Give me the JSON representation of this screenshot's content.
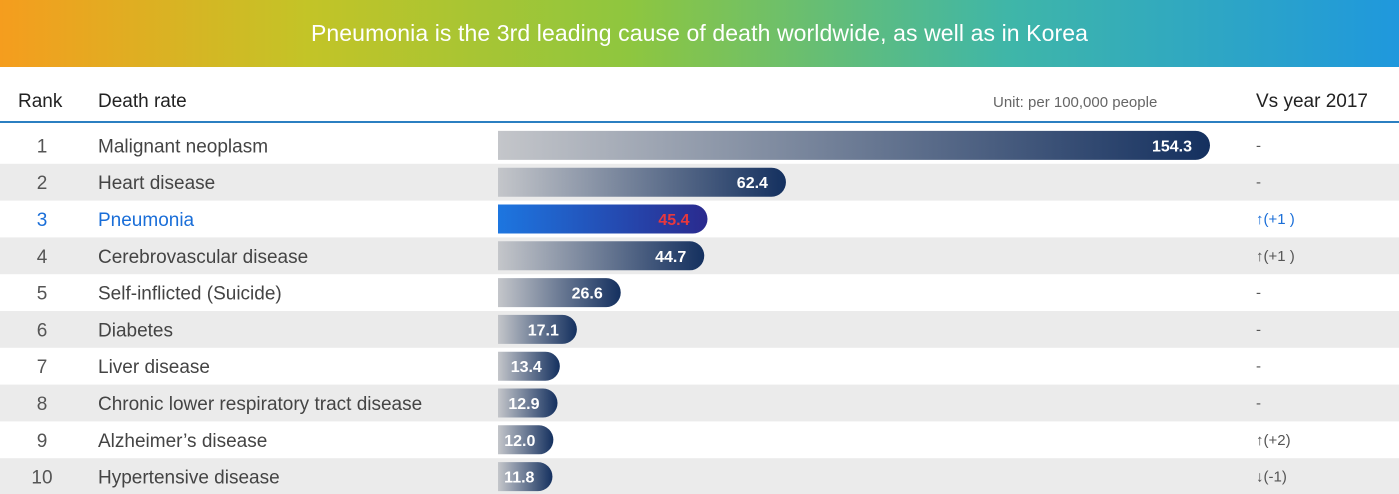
{
  "title": "Pneumonia is the 3rd leading cause of death worldwide, as well as in Korea",
  "headers": {
    "rank": "Rank",
    "rate": "Death rate",
    "unit": "Unit: per 100,000 people",
    "change": "Vs year 2017"
  },
  "colors": {
    "row_alt": "#ebebeb",
    "bar_dark": "#14305f",
    "bar_light": "#c4c6ca",
    "highlight_dark": "#2a2a8e",
    "highlight_light": "#1d76e0",
    "highlight_text": "#1a6ed8",
    "highlight_value": "#e8383d"
  },
  "chart_data": {
    "type": "bar",
    "orientation": "horizontal",
    "highlight_rank": 3,
    "rows": [
      {
        "rank": "1",
        "cause": "Malignant neoplasm",
        "value": 154.3,
        "label": "154.3",
        "change": "-"
      },
      {
        "rank": "2",
        "cause": "Heart disease",
        "value": 62.4,
        "label": "62.4",
        "change": "-"
      },
      {
        "rank": "3",
        "cause": "Pneumonia",
        "value": 45.4,
        "label": "45.4",
        "change": "↑(+1 )"
      },
      {
        "rank": "4",
        "cause": "Cerebrovascular disease",
        "value": 44.7,
        "label": "44.7",
        "change": "↑(+1 )"
      },
      {
        "rank": "5",
        "cause": "Self-inflicted (Suicide)",
        "value": 26.6,
        "label": "26.6",
        "change": "-"
      },
      {
        "rank": "6",
        "cause": "Diabetes",
        "value": 17.1,
        "label": "17.1",
        "change": "-"
      },
      {
        "rank": "7",
        "cause": "Liver disease",
        "value": 13.4,
        "label": "13.4",
        "change": "-"
      },
      {
        "rank": "8",
        "cause": "Chronic lower respiratory tract disease",
        "value": 12.9,
        "label": "12.9",
        "change": "-"
      },
      {
        "rank": "9",
        "cause": "Alzheimer’s disease",
        "value": 12.0,
        "label": "12.0",
        "change": "↑(+2)"
      },
      {
        "rank": "10",
        "cause": "Hypertensive disease",
        "value": 11.8,
        "label": "11.8",
        "change": "↓(-1)"
      }
    ]
  }
}
